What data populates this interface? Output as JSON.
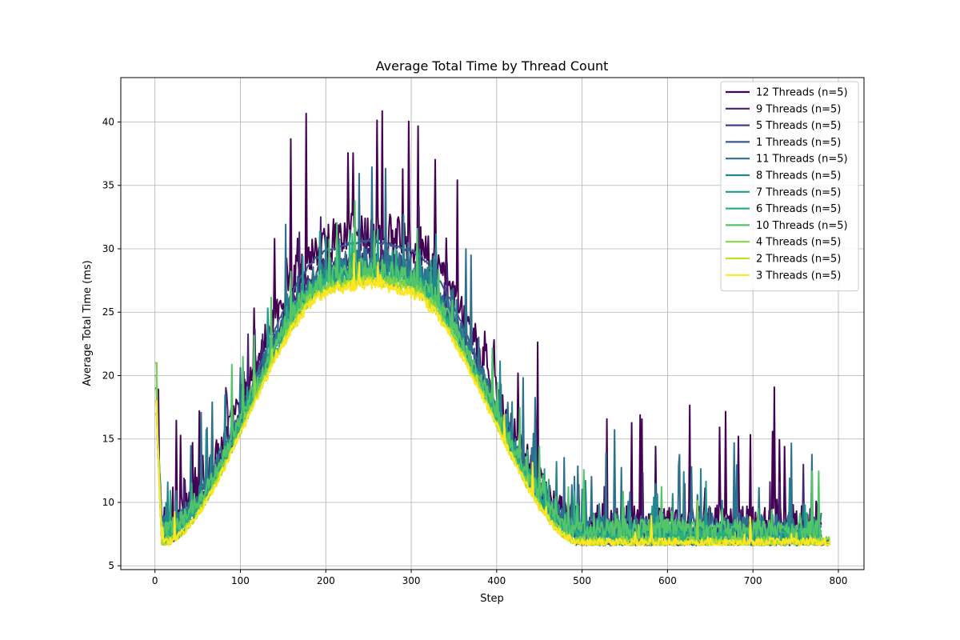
{
  "chart_data": {
    "type": "line",
    "title": "Average Total Time by Thread Count",
    "xlabel": "Step",
    "ylabel": "Average Total Time (ms)",
    "xlim": [
      -40,
      830
    ],
    "ylim": [
      4.7,
      43.5
    ],
    "xticks": [
      0,
      100,
      200,
      300,
      400,
      500,
      600,
      700,
      800
    ],
    "yticks": [
      5,
      10,
      15,
      20,
      25,
      30,
      35,
      40
    ],
    "grid": true,
    "legend_position": "top-right",
    "series": [
      {
        "name": "12 Threads (n=5)",
        "color": "#440154",
        "end": 780,
        "noise": 3.2,
        "peak": 30.5,
        "base": 8.3,
        "spike": 0.09
      },
      {
        "name": "9 Threads (n=5)",
        "color": "#482173",
        "end": 780,
        "noise": 1.6,
        "peak": 28.5,
        "base": 7.6,
        "spike": 0.05
      },
      {
        "name": "5 Threads (n=5)",
        "color": "#433e85",
        "end": 790,
        "noise": 0.7,
        "peak": 28.0,
        "base": 6.8,
        "spike": 0.02
      },
      {
        "name": "1 Threads (n=5)",
        "color": "#38588c",
        "end": 790,
        "noise": 0.25,
        "peak": 30.0,
        "base": 6.7,
        "spike": 0.0
      },
      {
        "name": "11 Threads (n=5)",
        "color": "#2d708e",
        "end": 780,
        "noise": 2.4,
        "peak": 28.2,
        "base": 8.0,
        "spike": 0.07
      },
      {
        "name": "8 Threads (n=5)",
        "color": "#25858e",
        "end": 780,
        "noise": 1.5,
        "peak": 27.8,
        "base": 7.6,
        "spike": 0.05
      },
      {
        "name": "7 Threads (n=5)",
        "color": "#1e9b8a",
        "end": 780,
        "noise": 1.3,
        "peak": 27.5,
        "base": 7.4,
        "spike": 0.04
      },
      {
        "name": "6 Threads (n=5)",
        "color": "#2ab07f",
        "end": 780,
        "noise": 1.2,
        "peak": 27.3,
        "base": 7.3,
        "spike": 0.04
      },
      {
        "name": "10 Threads (n=5)",
        "color": "#52c569",
        "end": 780,
        "noise": 1.8,
        "peak": 27.6,
        "base": 7.8,
        "spike": 0.05
      },
      {
        "name": "4 Threads (n=5)",
        "color": "#86d549",
        "end": 790,
        "noise": 0.9,
        "peak": 27.0,
        "base": 6.9,
        "spike": 0.02
      },
      {
        "name": "2 Threads (n=5)",
        "color": "#c2df23",
        "end": 790,
        "noise": 0.6,
        "peak": 26.8,
        "base": 6.8,
        "spike": 0.01
      },
      {
        "name": "3 Threads (n=5)",
        "color": "#fde725",
        "end": 790,
        "noise": 0.8,
        "peak": 26.6,
        "base": 6.8,
        "spike": 0.02
      }
    ]
  }
}
